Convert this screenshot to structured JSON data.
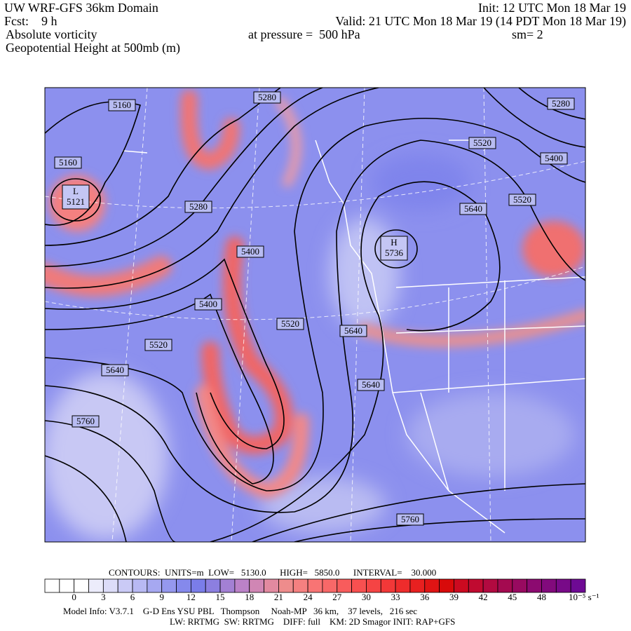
{
  "header": {
    "title": "UW WRF-GFS 36km Domain",
    "init": "Init: 12 UTC Mon 18 Mar 19",
    "forecast": "Fcst:    9 h",
    "valid": "Valid: 21 UTC Mon 18 Mar 19 (14 PDT Mon 18 Mar 19)",
    "field": "Absolute vorticity",
    "pressure": "at pressure =  500 hPa",
    "smoothing": "sm= 2",
    "overlay": "Geopotential Height at 500mb (m)"
  },
  "contour_labels": [
    "5160",
    "5280",
    "5280",
    "5160",
    "5280",
    "5520",
    "5400",
    "5520",
    "5640",
    "5400",
    "5400",
    "5520",
    "5640",
    "5520",
    "5640",
    "5640",
    "5760",
    "5760"
  ],
  "centers": [
    {
      "symbol": "L",
      "value": "5121"
    },
    {
      "symbol": "H",
      "value": "5736"
    }
  ],
  "colorbar": {
    "ticks": [
      "0",
      "3",
      "6",
      "9",
      "12",
      "15",
      "18",
      "21",
      "24",
      "27",
      "30",
      "33",
      "36",
      "39",
      "42",
      "45",
      "48"
    ],
    "unit": "10⁻⁵ s⁻¹"
  },
  "footer": {
    "contours": "CONTOURS:  UNITS=m  LOW=   5130.0      HIGH=   5850.0      INTERVAL=    30.000",
    "model_info": "Model Info: V3.7.1    G-D Ens YSU PBL   Thompson     Noah-MP   36 km,    37 levels,   216 sec",
    "physics": "LW: RRTMG  SW: RRTMG    DIFF: full    KM: 2D Smagor INIT: RAP+GFS"
  }
}
